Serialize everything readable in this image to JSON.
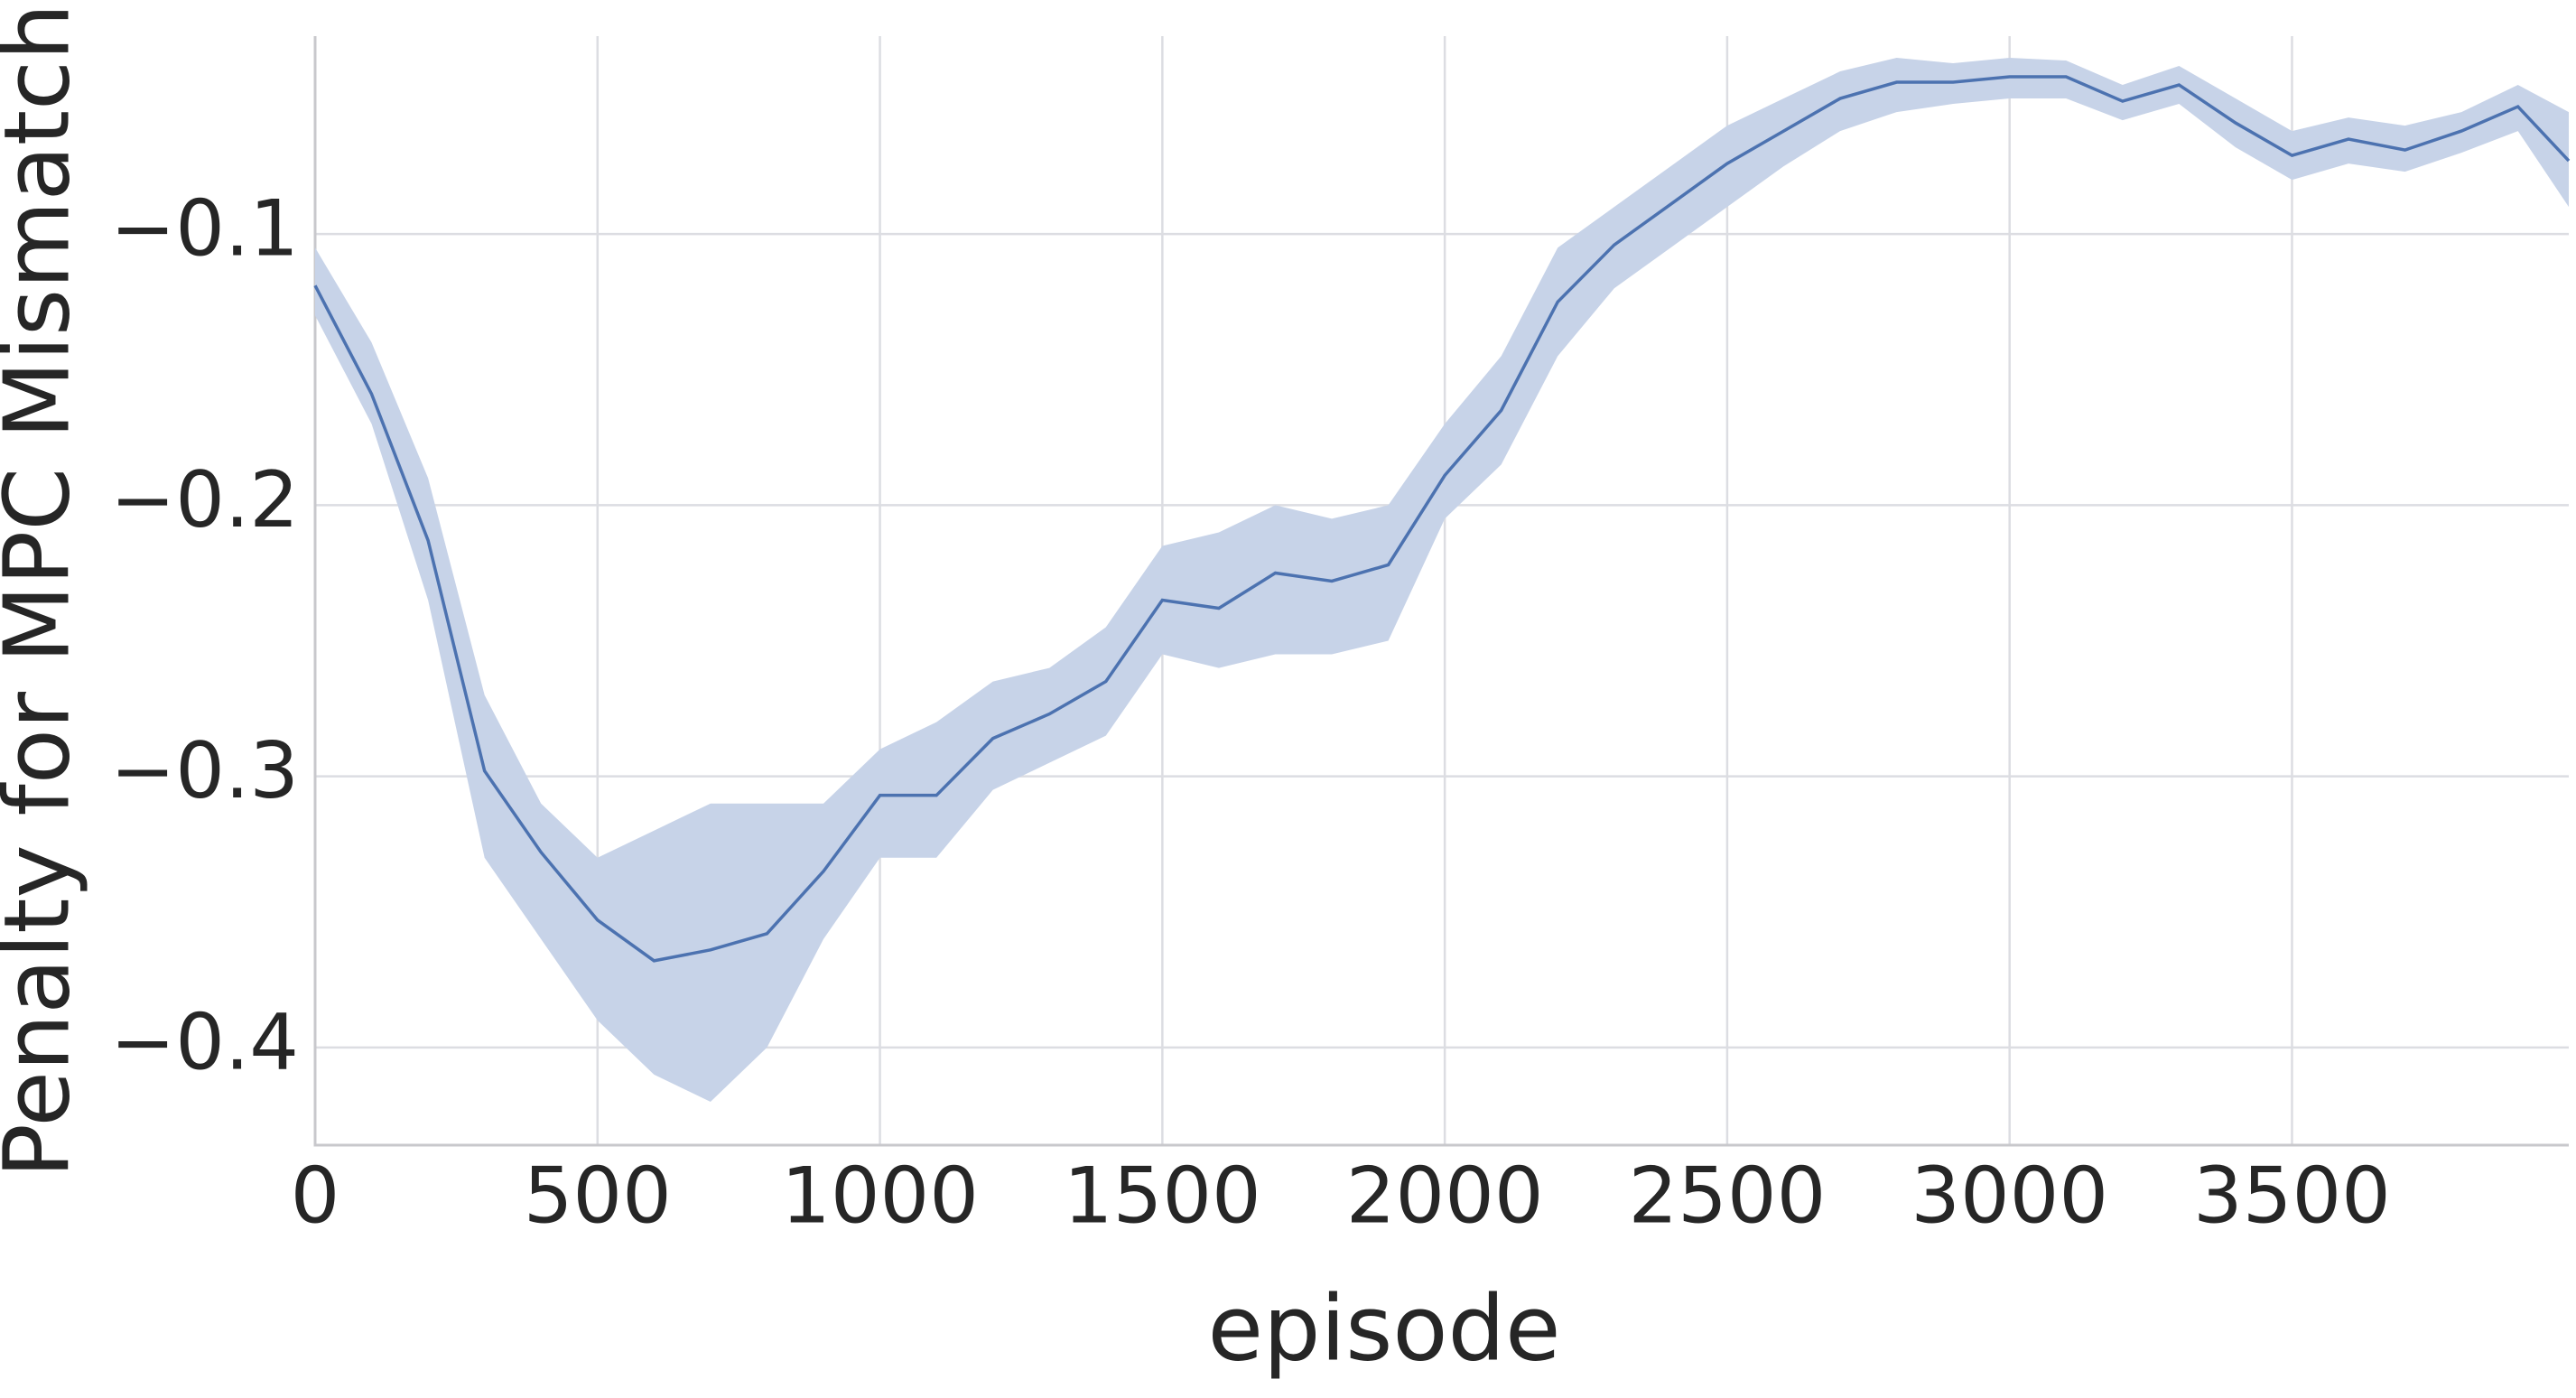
{
  "chart_data": {
    "type": "line",
    "xlabel": "episode",
    "ylabel": "Penalty for MPC Mismatch",
    "x": [
      0,
      100,
      200,
      300,
      400,
      500,
      600,
      700,
      800,
      900,
      1000,
      1100,
      1200,
      1300,
      1400,
      1500,
      1600,
      1700,
      1800,
      1900,
      2000,
      2100,
      2200,
      2300,
      2400,
      2500,
      2600,
      2700,
      2800,
      2900,
      3000,
      3100,
      3200,
      3300,
      3400,
      3500,
      3600,
      3700,
      3800,
      3900,
      3990
    ],
    "series": [
      {
        "color": "#4c72b0",
        "band_color": "#c7d3e8",
        "values": [
          -0.119,
          -0.159,
          -0.213,
          -0.298,
          -0.328,
          -0.353,
          -0.368,
          -0.364,
          -0.358,
          -0.335,
          -0.307,
          -0.307,
          -0.286,
          -0.277,
          -0.265,
          -0.235,
          -0.238,
          -0.225,
          -0.228,
          -0.222,
          -0.189,
          -0.165,
          -0.125,
          -0.104,
          -0.089,
          -0.074,
          -0.062,
          -0.05,
          -0.044,
          -0.044,
          -0.042,
          -0.042,
          -0.051,
          -0.045,
          -0.059,
          -0.071,
          -0.065,
          -0.069,
          -0.062,
          -0.053,
          -0.073
        ],
        "upper": [
          -0.105,
          -0.14,
          -0.19,
          -0.27,
          -0.31,
          -0.33,
          -0.32,
          -0.31,
          -0.31,
          -0.31,
          -0.29,
          -0.28,
          -0.265,
          -0.26,
          -0.245,
          -0.215,
          -0.21,
          -0.2,
          -0.205,
          -0.2,
          -0.17,
          -0.145,
          -0.105,
          -0.09,
          -0.075,
          -0.06,
          -0.05,
          -0.04,
          -0.035,
          -0.037,
          -0.035,
          -0.036,
          -0.045,
          -0.038,
          -0.05,
          -0.062,
          -0.057,
          -0.06,
          -0.055,
          -0.045,
          -0.055
        ],
        "lower": [
          -0.13,
          -0.17,
          -0.235,
          -0.33,
          -0.36,
          -0.39,
          -0.41,
          -0.42,
          -0.4,
          -0.36,
          -0.33,
          -0.33,
          -0.305,
          -0.295,
          -0.285,
          -0.255,
          -0.26,
          -0.255,
          -0.255,
          -0.25,
          -0.205,
          -0.185,
          -0.145,
          -0.12,
          -0.105,
          -0.09,
          -0.075,
          -0.062,
          -0.055,
          -0.052,
          -0.05,
          -0.05,
          -0.058,
          -0.052,
          -0.068,
          -0.08,
          -0.074,
          -0.077,
          -0.07,
          -0.062,
          -0.09
        ]
      }
    ],
    "xlim": [
      0,
      3990
    ],
    "ylim": [
      -0.436,
      -0.027
    ],
    "xticks": [
      0,
      500,
      1000,
      1500,
      2000,
      2500,
      3000,
      3500
    ],
    "yticks": [
      {
        "value": -0.1,
        "label": "−0.1"
      },
      {
        "value": -0.2,
        "label": "−0.2"
      },
      {
        "value": -0.3,
        "label": "−0.3"
      },
      {
        "value": -0.4,
        "label": "−0.4"
      }
    ],
    "grid": true
  }
}
